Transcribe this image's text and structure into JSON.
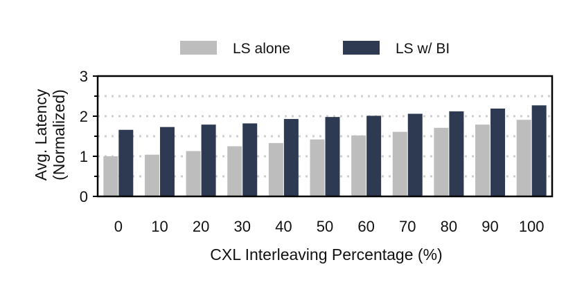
{
  "chart_data": {
    "type": "bar",
    "xlabel": "CXL Interleaving Percentage (%)",
    "ylabel_lines": [
      "Avg. Latency",
      "(Normalized)"
    ],
    "categories": [
      "0",
      "10",
      "20",
      "30",
      "40",
      "50",
      "60",
      "70",
      "80",
      "90",
      "100"
    ],
    "ylim": [
      0,
      3
    ],
    "yticks": [
      "0",
      "1",
      "2",
      "3"
    ],
    "grid": "horizontal dotted at 0.5 steps",
    "legend_position": "top-center",
    "series": [
      {
        "name": "LS alone",
        "color": "#bdbdbd",
        "values": [
          1.0,
          1.04,
          1.13,
          1.25,
          1.33,
          1.42,
          1.52,
          1.61,
          1.71,
          1.79,
          1.91
        ]
      },
      {
        "name": "LS w/ BI",
        "color": "#2d3a52",
        "values": [
          1.66,
          1.73,
          1.79,
          1.82,
          1.93,
          1.98,
          2.01,
          2.06,
          2.12,
          2.19,
          2.27
        ]
      }
    ]
  }
}
